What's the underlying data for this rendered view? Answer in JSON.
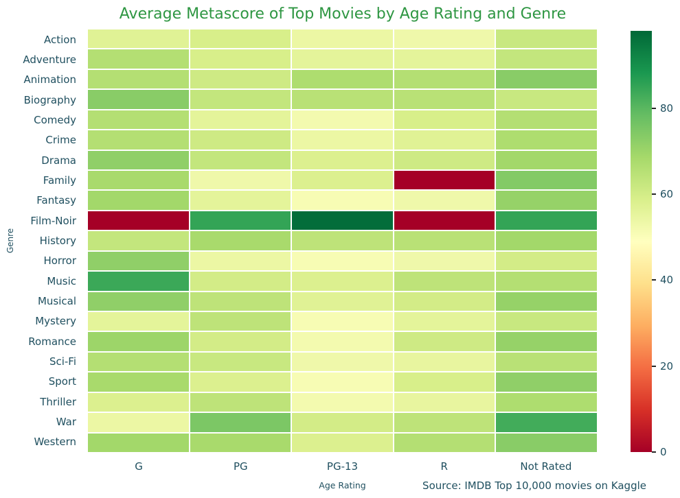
{
  "figure": {
    "background": "#ffffff",
    "title_color": "#2e9642",
    "text_color": "#1f4f5f",
    "tick_mark_color": "#262626",
    "gridline_color": "#ffffff"
  },
  "chart_data": {
    "type": "heatmap",
    "title": "Average Metascore of Top Movies by Age Rating and Genre",
    "xlabel": "Age Rating",
    "ylabel": "Genre",
    "source_note": "Source: IMDB Top 10,000 movies on Kaggle",
    "x_categories": [
      "G",
      "PG",
      "PG-13",
      "R",
      "Not Rated"
    ],
    "y_categories": [
      "Action",
      "Adventure",
      "Animation",
      "Biography",
      "Comedy",
      "Crime",
      "Drama",
      "Family",
      "Fantasy",
      "Film-Noir",
      "History",
      "Horror",
      "Music",
      "Musical",
      "Mystery",
      "Romance",
      "Sci-Fi",
      "Sport",
      "Thriller",
      "War",
      "Western"
    ],
    "values": [
      [
        57,
        59,
        54,
        53,
        62
      ],
      [
        66,
        59,
        56,
        56,
        63
      ],
      [
        66,
        61,
        67,
        66,
        73
      ],
      [
        73,
        63,
        65,
        65,
        62
      ],
      [
        66,
        56,
        52,
        59,
        66
      ],
      [
        66,
        61,
        54,
        57,
        67
      ],
      [
        72,
        63,
        58,
        61,
        69
      ],
      [
        68,
        53,
        58,
        0,
        74
      ],
      [
        69,
        56,
        51,
        53,
        71
      ],
      [
        0,
        85,
        97,
        0,
        85
      ],
      [
        63,
        68,
        64,
        65,
        69
      ],
      [
        72,
        54,
        51,
        53,
        60
      ],
      [
        84,
        60,
        58,
        64,
        66
      ],
      [
        72,
        64,
        57,
        60,
        71
      ],
      [
        56,
        64,
        51,
        56,
        62
      ],
      [
        70,
        60,
        52,
        61,
        71
      ],
      [
        66,
        62,
        53,
        55,
        65
      ],
      [
        68,
        58,
        51,
        59,
        72
      ],
      [
        58,
        64,
        52,
        55,
        67
      ],
      [
        54,
        75,
        60,
        64,
        83
      ],
      [
        69,
        68,
        58,
        66,
        73
      ]
    ],
    "colormap": "RdYlGn",
    "vmin": 0,
    "vmax": 98,
    "colorbar_ticks": [
      0,
      20,
      40,
      60,
      80
    ],
    "legend_position": "right-colorbar",
    "grid": "white-cell-borders"
  }
}
